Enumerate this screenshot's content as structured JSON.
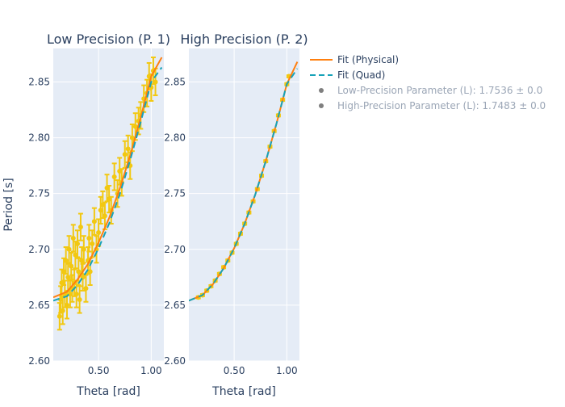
{
  "chart_data": [
    {
      "type": "scatter",
      "title": "Low Precision (P. 1)",
      "xlabel": "Theta [rad]",
      "ylabel": "Period [s]",
      "xlim": [
        0.07,
        1.12
      ],
      "ylim": [
        2.6,
        2.88
      ],
      "x_ticks": [
        0.5,
        1.0
      ],
      "x_tick_labels": [
        "0.50",
        "1.00"
      ],
      "y_ticks": [
        2.6,
        2.65,
        2.7,
        2.75,
        2.8,
        2.85
      ],
      "y_tick_labels": [
        "2.60",
        "2.65",
        "2.70",
        "2.75",
        "2.80",
        "2.85"
      ],
      "grid": true,
      "series": [
        {
          "kind": "line",
          "name": "Fit (Physical)",
          "color": "#ff7f0e",
          "dash": "solid",
          "x": [
            0.07,
            0.2,
            0.3,
            0.4,
            0.5,
            0.6,
            0.7,
            0.8,
            0.9,
            1.0,
            1.1
          ],
          "y": [
            2.657,
            2.662,
            2.673,
            2.687,
            2.706,
            2.728,
            2.754,
            2.784,
            2.818,
            2.855,
            2.872
          ]
        },
        {
          "kind": "line",
          "name": "Fit (Quad)",
          "color": "#17a2b8",
          "dash": "dash",
          "x": [
            0.07,
            0.2,
            0.3,
            0.4,
            0.5,
            0.6,
            0.7,
            0.8,
            0.9,
            1.0,
            1.1
          ],
          "y": [
            2.654,
            2.658,
            2.668,
            2.682,
            2.701,
            2.723,
            2.749,
            2.78,
            2.814,
            2.85,
            2.863
          ]
        },
        {
          "kind": "errorbar",
          "name": "Low-Precision Parameter (L): 1.7536 ± 0.0",
          "color": "#f2c811",
          "err": 0.012,
          "x": [
            0.13,
            0.14,
            0.15,
            0.16,
            0.17,
            0.18,
            0.19,
            0.2,
            0.21,
            0.22,
            0.23,
            0.24,
            0.25,
            0.26,
            0.27,
            0.28,
            0.29,
            0.3,
            0.31,
            0.32,
            0.33,
            0.34,
            0.35,
            0.36,
            0.38,
            0.4,
            0.41,
            0.42,
            0.44,
            0.46,
            0.48,
            0.5,
            0.52,
            0.54,
            0.56,
            0.58,
            0.6,
            0.62,
            0.65,
            0.68,
            0.7,
            0.72,
            0.75,
            0.78,
            0.8,
            0.82,
            0.85,
            0.88,
            0.9,
            0.93,
            0.96,
            0.98,
            1.0,
            1.02,
            1.04
          ],
          "y": [
            2.64,
            2.655,
            2.67,
            2.645,
            2.68,
            2.66,
            2.69,
            2.65,
            2.675,
            2.7,
            2.66,
            2.685,
            2.665,
            2.71,
            2.67,
            2.695,
            2.66,
            2.705,
            2.68,
            2.655,
            2.72,
            2.69,
            2.675,
            2.7,
            2.665,
            2.69,
            2.71,
            2.68,
            2.705,
            2.725,
            2.7,
            2.715,
            2.735,
            2.74,
            2.73,
            2.755,
            2.745,
            2.735,
            2.765,
            2.75,
            2.77,
            2.76,
            2.785,
            2.79,
            2.775,
            2.8,
            2.81,
            2.815,
            2.82,
            2.835,
            2.84,
            2.855,
            2.845,
            2.86,
            2.85
          ]
        }
      ]
    },
    {
      "type": "scatter",
      "title": "High Precision (P. 2)",
      "xlabel": "Theta [rad]",
      "xlim": [
        0.07,
        1.12
      ],
      "ylim": [
        2.6,
        2.88
      ],
      "x_ticks": [
        0.5,
        1.0
      ],
      "x_tick_labels": [
        "0.50",
        "1.00"
      ],
      "y_ticks": [
        2.6,
        2.65,
        2.7,
        2.75,
        2.8,
        2.85
      ],
      "y_tick_labels": [
        "2.60",
        "2.65",
        "2.70",
        "2.75",
        "2.80",
        "2.85"
      ],
      "grid": true,
      "series": [
        {
          "kind": "line",
          "name": "Fit (Physical)",
          "color": "#ff7f0e",
          "dash": "solid",
          "x": [
            0.07,
            0.2,
            0.3,
            0.4,
            0.5,
            0.6,
            0.7,
            0.8,
            0.9,
            1.0,
            1.1
          ],
          "y": [
            2.654,
            2.659,
            2.669,
            2.683,
            2.701,
            2.723,
            2.749,
            2.779,
            2.812,
            2.848,
            2.868
          ]
        },
        {
          "kind": "line",
          "name": "Fit (Quad)",
          "color": "#17a2b8",
          "dash": "dash",
          "x": [
            0.07,
            0.2,
            0.3,
            0.4,
            0.5,
            0.6,
            0.7,
            0.8,
            0.9,
            1.0,
            1.1
          ],
          "y": [
            2.654,
            2.659,
            2.669,
            2.683,
            2.701,
            2.723,
            2.749,
            2.779,
            2.812,
            2.848,
            2.862
          ]
        },
        {
          "kind": "errorbar",
          "name": "High-Precision Parameter (L): 1.7483 ± 0.0",
          "color": "#f2c811",
          "err": 0.001,
          "x": [
            0.16,
            0.2,
            0.24,
            0.28,
            0.32,
            0.36,
            0.4,
            0.44,
            0.48,
            0.52,
            0.56,
            0.6,
            0.64,
            0.68,
            0.72,
            0.76,
            0.8,
            0.84,
            0.88,
            0.92,
            0.96,
            1.0,
            1.02
          ],
          "y": [
            2.657,
            2.659,
            2.663,
            2.667,
            2.672,
            2.678,
            2.684,
            2.69,
            2.697,
            2.705,
            2.714,
            2.723,
            2.733,
            2.743,
            2.754,
            2.766,
            2.779,
            2.792,
            2.806,
            2.82,
            2.834,
            2.848,
            2.855
          ]
        }
      ]
    }
  ],
  "legend": {
    "position": "top-right",
    "items": [
      {
        "label": "Fit (Physical)",
        "symbol": "line",
        "color": "#ff7f0e",
        "muted": false
      },
      {
        "label": "Fit (Quad)",
        "symbol": "dash",
        "color": "#17a2b8",
        "muted": false
      },
      {
        "label": "Low-Precision Parameter (L): 1.7536 ± 0.0",
        "symbol": "dot",
        "color": "#7f7f7f",
        "muted": true
      },
      {
        "label": "High-Precision Parameter (L): 1.7483 ± 0.0",
        "symbol": "dot",
        "color": "#7f7f7f",
        "muted": true
      }
    ]
  },
  "colors": {
    "plot_bg": "#e5ecf6",
    "grid": "#ffffff",
    "text": "#2a3f5f",
    "muted_text": "#9ba6b6"
  }
}
